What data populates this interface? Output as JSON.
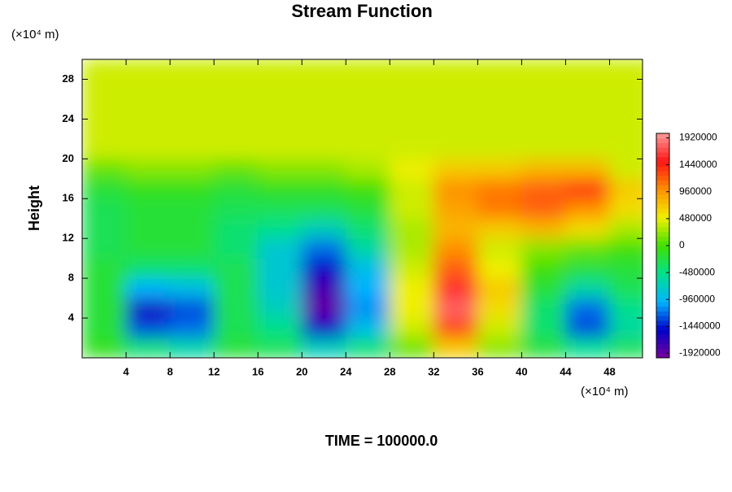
{
  "chart_data": {
    "type": "contour",
    "title": "Stream Function",
    "y_unit": "(×10⁴ m)",
    "x_unit": "(×10⁴ m)",
    "y_label": "Height",
    "footer": "TIME = 100000.0",
    "xlim": [
      0,
      51
    ],
    "ylim": [
      0,
      30
    ],
    "xticks": [
      4,
      8,
      12,
      16,
      20,
      24,
      28,
      32,
      36,
      40,
      44,
      48
    ],
    "yticks": [
      4,
      8,
      12,
      16,
      20,
      24,
      28
    ],
    "x": [
      2,
      6,
      10,
      14,
      18,
      22,
      26,
      30,
      34,
      38,
      42,
      46,
      50
    ],
    "y": [
      1,
      3,
      5,
      7,
      9,
      11,
      13,
      15,
      17,
      19,
      21,
      23,
      25,
      27,
      29
    ],
    "z": [
      [
        -100000,
        -400000,
        -600000,
        -200000,
        -300000,
        -700000,
        -400000,
        100000,
        700000,
        200000,
        -200000,
        -500000,
        -300000
      ],
      [
        -200000,
        -1300000,
        -1200000,
        -300000,
        -500000,
        -1500000,
        -900000,
        400000,
        1300000,
        400000,
        -400000,
        -1300000,
        -600000
      ],
      [
        -200000,
        -1600000,
        -1300000,
        -300000,
        -700000,
        -1900000,
        -1100000,
        500000,
        1800000,
        600000,
        -400000,
        -1200000,
        -500000
      ],
      [
        -200000,
        -1000000,
        -900000,
        -300000,
        -800000,
        -1800000,
        -1000000,
        500000,
        1600000,
        700000,
        -200000,
        -600000,
        -300000
      ],
      [
        -200000,
        -400000,
        -400000,
        -300000,
        -800000,
        -1500000,
        -900000,
        400000,
        1200000,
        500000,
        0,
        -200000,
        -200000
      ],
      [
        -300000,
        -200000,
        -200000,
        -400000,
        -800000,
        -1200000,
        -600000,
        300000,
        1000000,
        400000,
        200000,
        100000,
        0
      ],
      [
        -300000,
        -200000,
        -200000,
        -400000,
        -500000,
        -700000,
        -400000,
        300000,
        800000,
        700000,
        800000,
        600000,
        300000
      ],
      [
        -300000,
        -200000,
        -200000,
        -300000,
        -300000,
        -300000,
        -200000,
        400000,
        900000,
        1100000,
        1200000,
        1000000,
        600000
      ],
      [
        -200000,
        -100000,
        -100000,
        -200000,
        -100000,
        -100000,
        0,
        400000,
        1000000,
        1100000,
        1200000,
        1400000,
        700000
      ],
      [
        100000,
        200000,
        200000,
        100000,
        200000,
        200000,
        300000,
        500000,
        700000,
        700000,
        800000,
        800000,
        400000
      ],
      [
        400000,
        400000,
        400000,
        400000,
        400000,
        400000,
        400000,
        400000,
        400000,
        400000,
        400000,
        400000,
        400000
      ],
      [
        400000,
        400000,
        400000,
        400000,
        400000,
        400000,
        400000,
        400000,
        400000,
        400000,
        400000,
        400000,
        400000
      ],
      [
        400000,
        400000,
        400000,
        400000,
        400000,
        400000,
        400000,
        400000,
        400000,
        400000,
        400000,
        400000,
        400000
      ],
      [
        400000,
        400000,
        400000,
        400000,
        400000,
        400000,
        400000,
        400000,
        400000,
        400000,
        400000,
        400000,
        400000
      ],
      [
        400000,
        400000,
        400000,
        400000,
        400000,
        400000,
        400000,
        400000,
        400000,
        400000,
        400000,
        400000,
        400000
      ]
    ],
    "clim": [
      -2000000,
      2000000
    ],
    "cticks": [
      -1920000,
      -1440000,
      -960000,
      -480000,
      0,
      480000,
      960000,
      1440000,
      1920000
    ],
    "colors": [
      "#7a00a0",
      "#0000c8",
      "#00b4ff",
      "#00e08c",
      "#40e000",
      "#f0f000",
      "#ff9000",
      "#ff1414",
      "#ff9a9a"
    ]
  }
}
